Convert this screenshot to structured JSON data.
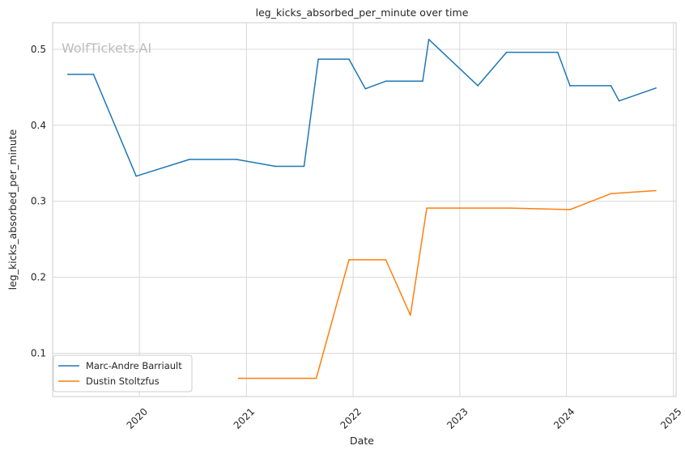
{
  "chart_data": {
    "type": "line",
    "title": "leg_kicks_absorbed_per_minute over time",
    "xlabel": "Date",
    "ylabel": "leg_kicks_absorbed_per_minute",
    "watermark": "WolfTickets.AI",
    "x_ticks": [
      "2020",
      "2021",
      "2022",
      "2023",
      "2024",
      "2025"
    ],
    "y_ticks": [
      "0.1",
      "0.2",
      "0.3",
      "0.4",
      "0.5"
    ],
    "xlim": [
      "2019-03-10",
      "2025-01-10"
    ],
    "ylim": [
      0.043,
      0.535
    ],
    "grid": true,
    "legend_position": "lower-left",
    "series": [
      {
        "name": "Marc-Andre Barriault",
        "color": "#1f77b4",
        "points": [
          {
            "x": "2019-05-01",
            "y": 0.467
          },
          {
            "x": "2019-07-28",
            "y": 0.467
          },
          {
            "x": "2019-12-21",
            "y": 0.333
          },
          {
            "x": "2020-06-20",
            "y": 0.355
          },
          {
            "x": "2020-11-28",
            "y": 0.355
          },
          {
            "x": "2021-04-10",
            "y": 0.346
          },
          {
            "x": "2021-07-17",
            "y": 0.346
          },
          {
            "x": "2021-09-04",
            "y": 0.487
          },
          {
            "x": "2021-12-18",
            "y": 0.487
          },
          {
            "x": "2022-02-12",
            "y": 0.448
          },
          {
            "x": "2022-04-23",
            "y": 0.458
          },
          {
            "x": "2022-08-27",
            "y": 0.458
          },
          {
            "x": "2022-09-17",
            "y": 0.513
          },
          {
            "x": "2023-03-04",
            "y": 0.452
          },
          {
            "x": "2023-06-10",
            "y": 0.496
          },
          {
            "x": "2023-12-02",
            "y": 0.496
          },
          {
            "x": "2024-01-13",
            "y": 0.452
          },
          {
            "x": "2024-06-01",
            "y": 0.452
          },
          {
            "x": "2024-06-29",
            "y": 0.432
          },
          {
            "x": "2024-11-02",
            "y": 0.449
          }
        ]
      },
      {
        "name": "Dustin Stoltzfus",
        "color": "#ff7f0e",
        "points": [
          {
            "x": "2020-12-05",
            "y": 0.067
          },
          {
            "x": "2021-08-28",
            "y": 0.067
          },
          {
            "x": "2021-12-18",
            "y": 0.223
          },
          {
            "x": "2022-04-23",
            "y": 0.223
          },
          {
            "x": "2022-07-16",
            "y": 0.15
          },
          {
            "x": "2022-09-10",
            "y": 0.291
          },
          {
            "x": "2023-06-17",
            "y": 0.291
          },
          {
            "x": "2024-01-13",
            "y": 0.289
          },
          {
            "x": "2024-06-01",
            "y": 0.31
          },
          {
            "x": "2024-11-02",
            "y": 0.314
          }
        ]
      }
    ]
  }
}
